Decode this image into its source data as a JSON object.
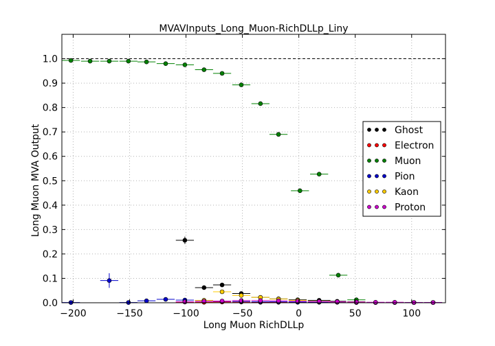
{
  "chart_data": {
    "type": "scatter",
    "title": "MVAVInputs_Long_Muon-RichDLLp_Liny",
    "xlabel": "Long Muon RichDLLp",
    "ylabel": "Long Muon MVA Output",
    "xlim": [
      -210,
      130
    ],
    "ylim": [
      0,
      1.1
    ],
    "xticks": [
      -200,
      -150,
      -100,
      -50,
      0,
      50,
      100
    ],
    "yticks": [
      0.0,
      0.1,
      0.2,
      0.3,
      0.4,
      0.5,
      0.6,
      0.7,
      0.8,
      0.9,
      1.0
    ],
    "reference_line": 1.0,
    "grid": true,
    "legend_position": "right",
    "series": [
      {
        "name": "Ghost",
        "color": "#000000",
        "points": [
          [
            -101,
            0.256,
            8,
            0.015
          ],
          [
            -84,
            0.062,
            8,
            0.005
          ],
          [
            -68,
            0.073,
            8,
            0.004
          ],
          [
            -51,
            0.038,
            8,
            0.003
          ],
          [
            -34,
            0.022,
            8,
            0.002
          ],
          [
            -18,
            0.016,
            8,
            0.002
          ],
          [
            -1,
            0.012,
            8,
            0.002
          ],
          [
            18,
            0.01,
            10,
            0.002
          ],
          [
            34,
            0.006,
            8,
            0.002
          ],
          [
            51,
            0.004,
            8,
            0.002
          ]
        ]
      },
      {
        "name": "Electron",
        "color": "#ff0000",
        "points": [
          [
            -101,
            0.003,
            8,
            0.002
          ],
          [
            -84,
            0.002,
            8,
            0.001
          ],
          [
            -68,
            0.003,
            8,
            0.001
          ],
          [
            -51,
            0.003,
            8,
            0.001
          ],
          [
            -34,
            0.002,
            8,
            0.001
          ],
          [
            -18,
            0.002,
            8,
            0.001
          ],
          [
            -1,
            0.002,
            8,
            0.001
          ],
          [
            18,
            0.002,
            10,
            0.001
          ],
          [
            34,
            0.002,
            8,
            0.001
          ],
          [
            51,
            0.001,
            8,
            0.001
          ],
          [
            68,
            0.001,
            8,
            0.001
          ],
          [
            85,
            0.001,
            8,
            0.001
          ],
          [
            102,
            0.001,
            8,
            0.001
          ],
          [
            119,
            0.001,
            8,
            0.001
          ]
        ]
      },
      {
        "name": "Muon",
        "color": "#008000",
        "points": [
          [
            -202,
            0.993,
            8,
            0.003
          ],
          [
            -185,
            0.99,
            8,
            0.002
          ],
          [
            -168,
            0.99,
            8,
            0.002
          ],
          [
            -151,
            0.99,
            8,
            0.002
          ],
          [
            -135,
            0.987,
            8,
            0.002
          ],
          [
            -118,
            0.98,
            8,
            0.002
          ],
          [
            -101,
            0.975,
            8,
            0.003
          ],
          [
            -84,
            0.955,
            8,
            0.003
          ],
          [
            -68,
            0.94,
            8,
            0.004
          ],
          [
            -51,
            0.893,
            8,
            0.005
          ],
          [
            -34,
            0.816,
            8,
            0.006
          ],
          [
            -18,
            0.69,
            8,
            0.007
          ],
          [
            1,
            0.459,
            8,
            0.007
          ],
          [
            18,
            0.527,
            8,
            0.008
          ],
          [
            35,
            0.113,
            8,
            0.006
          ],
          [
            51,
            0.012,
            8,
            0.003
          ]
        ]
      },
      {
        "name": "Pion",
        "color": "#0000cc",
        "points": [
          [
            -202,
            0.001,
            8,
            0.001
          ],
          [
            -168,
            0.091,
            8,
            0.03
          ],
          [
            -151,
            0.001,
            8,
            0.001
          ],
          [
            -135,
            0.008,
            8,
            0.004
          ],
          [
            -118,
            0.014,
            8,
            0.003
          ],
          [
            -101,
            0.011,
            8,
            0.002
          ],
          [
            -84,
            0.009,
            8,
            0.001
          ],
          [
            -68,
            0.006,
            8,
            0.001
          ],
          [
            -51,
            0.005,
            8,
            0.001
          ],
          [
            -34,
            0.004,
            8,
            0.001
          ],
          [
            -18,
            0.004,
            8,
            0.001
          ],
          [
            -1,
            0.003,
            8,
            0.001
          ],
          [
            18,
            0.003,
            10,
            0.001
          ],
          [
            34,
            0.003,
            8,
            0.001
          ],
          [
            51,
            0.002,
            8,
            0.001
          ],
          [
            68,
            0.001,
            8,
            0.001
          ],
          [
            85,
            0.001,
            8,
            0.001
          ],
          [
            102,
            0.001,
            8,
            0.001
          ],
          [
            119,
            0.001,
            8,
            0.001
          ]
        ]
      },
      {
        "name": "Kaon",
        "color": "#ffcc00",
        "points": [
          [
            -84,
            0.01,
            8,
            0.003
          ],
          [
            -68,
            0.045,
            8,
            0.004
          ],
          [
            -51,
            0.03,
            8,
            0.003
          ],
          [
            -34,
            0.022,
            8,
            0.002
          ],
          [
            -18,
            0.015,
            8,
            0.002
          ],
          [
            -1,
            0.01,
            8,
            0.002
          ],
          [
            18,
            0.006,
            10,
            0.001
          ],
          [
            34,
            0.004,
            8,
            0.001
          ],
          [
            51,
            0.003,
            8,
            0.001
          ]
        ]
      },
      {
        "name": "Proton",
        "color": "#cc00cc",
        "points": [
          [
            -101,
            0.004,
            8,
            0.002
          ],
          [
            -84,
            0.006,
            8,
            0.002
          ],
          [
            -68,
            0.007,
            8,
            0.002
          ],
          [
            -51,
            0.009,
            8,
            0.002
          ],
          [
            -34,
            0.009,
            8,
            0.002
          ],
          [
            -18,
            0.008,
            8,
            0.002
          ],
          [
            -1,
            0.006,
            8,
            0.001
          ],
          [
            18,
            0.005,
            10,
            0.001
          ],
          [
            34,
            0.004,
            8,
            0.001
          ],
          [
            51,
            0.003,
            8,
            0.001
          ],
          [
            68,
            0.002,
            8,
            0.001
          ],
          [
            85,
            0.002,
            8,
            0.001
          ],
          [
            102,
            0.001,
            8,
            0.001
          ],
          [
            119,
            0.001,
            8,
            0.001
          ]
        ]
      }
    ]
  }
}
